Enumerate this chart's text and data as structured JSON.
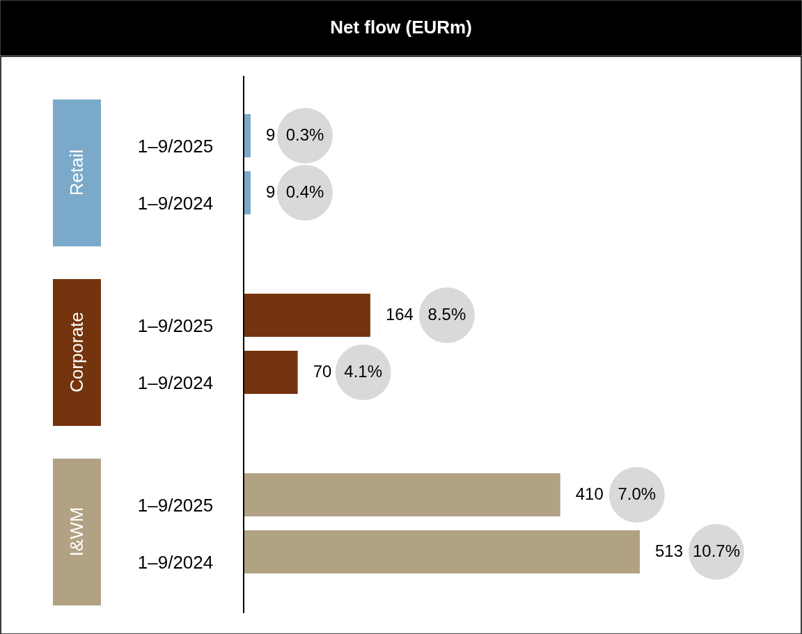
{
  "chart_data": {
    "type": "bar",
    "orientation": "horizontal",
    "title": "Net flow (EURm)",
    "categories": [
      "1–9/2025",
      "1–9/2024",
      "1–9/2025",
      "1–9/2024",
      "1–9/2025",
      "1–9/2024"
    ],
    "values": [
      9,
      9,
      164,
      70,
      410,
      513
    ],
    "colors": [
      "#7aa9c9",
      "#7aa9c9",
      "#74340d",
      "#74340d",
      "#b1a283",
      "#b1a283"
    ],
    "data_labels": true,
    "annotations": [
      "Retail",
      "Corporate",
      "I&WM",
      "0.3%",
      "0.4%",
      "8.5%",
      "4.1%",
      "7.0%",
      "10.7%"
    ]
  }
}
